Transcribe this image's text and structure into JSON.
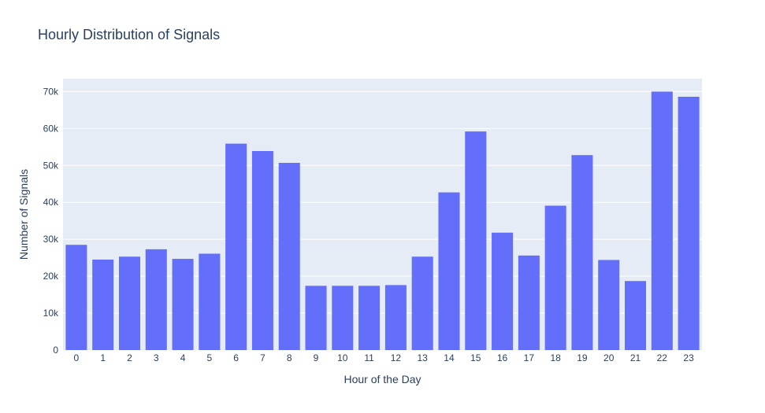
{
  "chart_data": {
    "type": "bar",
    "title": "Hourly Distribution of Signals",
    "xlabel": "Hour of the Day",
    "ylabel": "Number of Signals",
    "categories": [
      "0",
      "1",
      "2",
      "3",
      "4",
      "5",
      "6",
      "7",
      "8",
      "9",
      "10",
      "11",
      "12",
      "13",
      "14",
      "15",
      "16",
      "17",
      "18",
      "19",
      "20",
      "21",
      "22",
      "23"
    ],
    "values": [
      28500,
      24500,
      25300,
      27300,
      24700,
      26100,
      55900,
      53900,
      50700,
      17400,
      17400,
      17400,
      17600,
      25300,
      42700,
      59200,
      31800,
      25600,
      39100,
      52800,
      24400,
      18700,
      70000,
      68600
    ],
    "ylim": [
      0,
      73500
    ],
    "yticks": [
      0,
      10000,
      20000,
      30000,
      40000,
      50000,
      60000,
      70000
    ],
    "ytick_labels": [
      "0",
      "10k",
      "20k",
      "30k",
      "40k",
      "50k",
      "60k",
      "70k"
    ],
    "grid": true,
    "legend": "none",
    "colors": {
      "bar": "#636efa",
      "plot_bg": "#e5ecf6",
      "grid": "#ffffff",
      "text": "#2a3f5f"
    }
  }
}
